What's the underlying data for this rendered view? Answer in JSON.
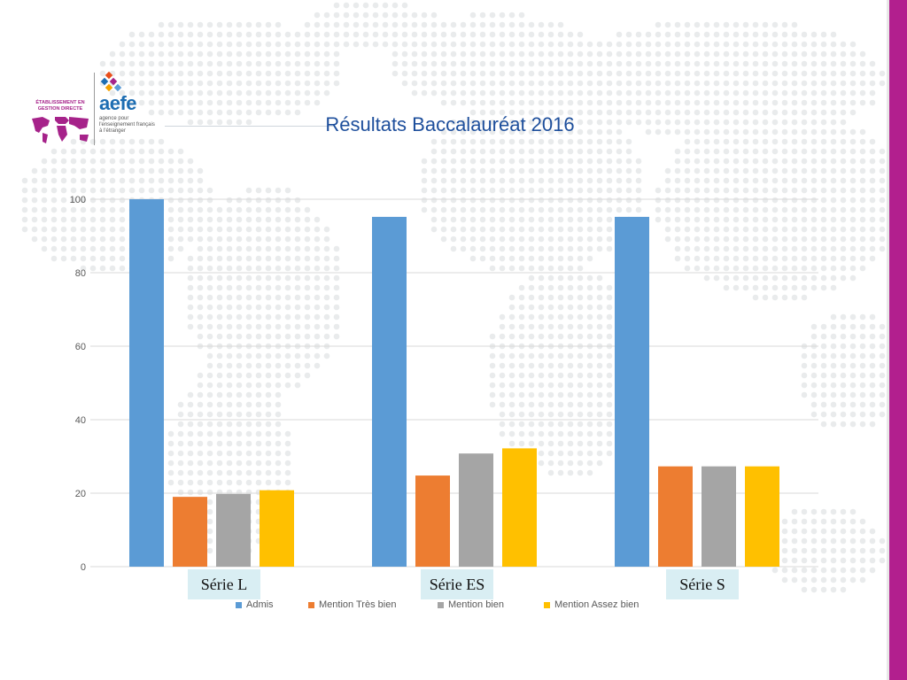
{
  "logo": {
    "watermark_text": "ÉTABLISSEMENT EN GESTION DIRECTE",
    "brand": "aefe",
    "tagline": "agence pour l'enseignement français à l'étranger"
  },
  "colors": {
    "side_bar": "#b21f8e",
    "title": "#1e4f9c",
    "label_box": "#d9eef3"
  },
  "chart_data": {
    "type": "bar",
    "title": "Résultats Baccalauréat 2016",
    "categories": [
      "Série L",
      "Série ES",
      "Série S"
    ],
    "series": [
      {
        "name": "Admis",
        "color": "#5b9bd5",
        "values": [
          100,
          95.2,
          95.2
        ]
      },
      {
        "name": "Mention Très bien",
        "color": "#ed7d31",
        "values": [
          19,
          24.8,
          27.3
        ]
      },
      {
        "name": "Mention bien",
        "color": "#a5a5a5",
        "values": [
          19.8,
          30.8,
          27.3
        ]
      },
      {
        "name": "Mention Assez bien",
        "color": "#ffc000",
        "values": [
          20.8,
          32.2,
          27.3
        ]
      }
    ],
    "ylim": [
      0,
      100
    ],
    "yticks": [
      0,
      20,
      40,
      60,
      80,
      100
    ],
    "ytick_labels": [
      "0",
      "20",
      "40",
      "60",
      "80",
      "100"
    ],
    "grid": true,
    "legend_position": "bottom"
  }
}
